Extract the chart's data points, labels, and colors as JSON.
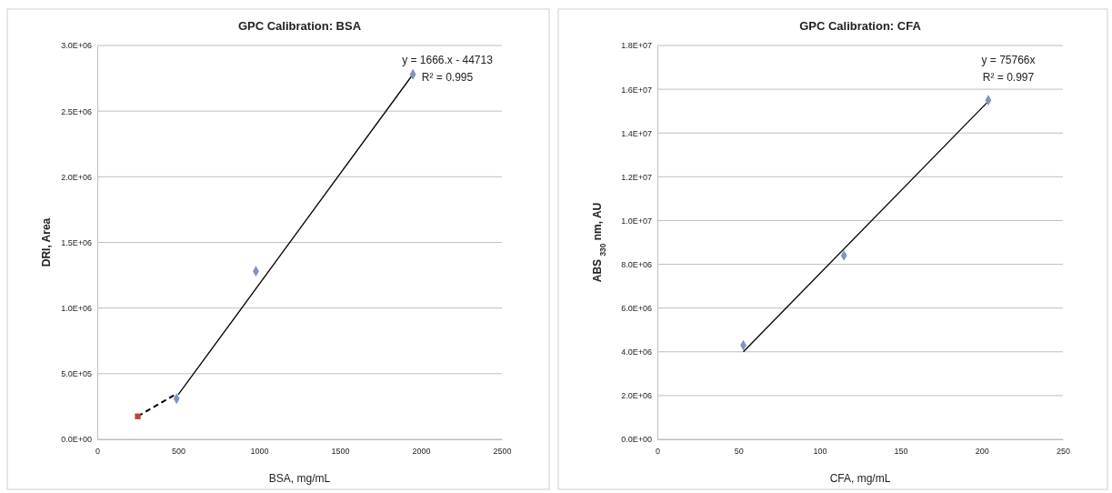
{
  "chart_data": [
    {
      "type": "scatter",
      "title": "GPC Calibration: BSA",
      "xlabel": "BSA, mg/mL",
      "ylabel": "DRI, Area",
      "xlim": [
        0,
        2500
      ],
      "xticks": [
        0,
        500,
        1000,
        1500,
        2000,
        2500
      ],
      "ylim": [
        0,
        3000000
      ],
      "yticks": [
        {
          "value": 0,
          "label": "0.0E+00"
        },
        {
          "value": 500000,
          "label": "5.0E+05"
        },
        {
          "value": 1000000,
          "label": "1.0E+06"
        },
        {
          "value": 1500000,
          "label": "1.5E+06"
        },
        {
          "value": 2000000,
          "label": "2.0E+06"
        },
        {
          "value": 2500000,
          "label": "2.5E+06"
        },
        {
          "value": 3000000,
          "label": "3.0E+06"
        }
      ],
      "grid": "y",
      "series": [
        {
          "type": "line",
          "color": "#000000",
          "line_style": "solid",
          "marker": "none",
          "x": [
            500,
            1950
          ],
          "values": [
            340000,
            2780000
          ]
        },
        {
          "type": "line",
          "color": "#000000",
          "line_style": "dashed",
          "marker": "none",
          "x": [
            250,
            480
          ],
          "values": [
            175000,
            340000
          ]
        },
        {
          "color": "#7f93c0",
          "marker": "diamond",
          "x": [
            490,
            980,
            1950
          ],
          "values": [
            310000,
            1280000,
            2780000
          ]
        },
        {
          "color": "#b54a3a",
          "marker": "square",
          "x": [
            250
          ],
          "values": [
            175000
          ]
        }
      ],
      "annotations": [
        "y = 1666.x - 44713",
        "R² = 0.995"
      ]
    },
    {
      "type": "scatter",
      "title": "GPC Calibration: CFA",
      "xlabel": "CFA, mg/mL",
      "ylabel": "ABS $_{330}$ nm, AU",
      "xlim": [
        0,
        250
      ],
      "xticks": [
        0,
        50,
        100,
        150,
        200,
        250
      ],
      "ylim": [
        0,
        18000000
      ],
      "yticks": [
        {
          "value": 0,
          "label": "0.0E+00"
        },
        {
          "value": 2000000,
          "label": "2.0E+06"
        },
        {
          "value": 4000000,
          "label": "4.0E+06"
        },
        {
          "value": 6000000,
          "label": "6.0E+06"
        },
        {
          "value": 8000000,
          "label": "8.0E+06"
        },
        {
          "value": 10000000,
          "label": "1.0E+07"
        },
        {
          "value": 12000000,
          "label": "1.2E+07"
        },
        {
          "value": 14000000,
          "label": "1.4E+07"
        },
        {
          "value": 16000000,
          "label": "1.6E+07"
        },
        {
          "value": 18000000,
          "label": "1.8E+07"
        }
      ],
      "grid": "y",
      "series": [
        {
          "type": "line",
          "color": "#000000",
          "line_style": "solid",
          "marker": "none",
          "x": [
            53,
            204
          ],
          "values": [
            4000000,
            15450000
          ]
        },
        {
          "color": "#7f93c0",
          "marker": "diamond",
          "x": [
            53,
            115,
            204
          ],
          "values": [
            4300000,
            8400000,
            15500000
          ]
        }
      ],
      "annotations": [
        "y = 75766x",
        "R² = 0.997"
      ]
    }
  ]
}
